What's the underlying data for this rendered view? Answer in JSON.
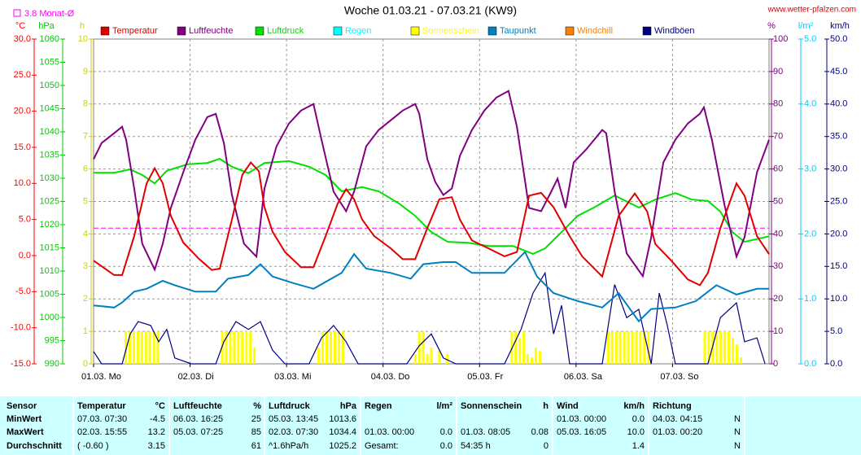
{
  "chart_data": {
    "type": "line",
    "title": "Woche 01.03.21 - 07.03.21 (KW9)",
    "source": "www.wetter-pfalzen.com",
    "monthly_avg": {
      "label": "3.8 Monat-Ø",
      "value": 3.8,
      "color": "#ff00ff",
      "axis": 0
    },
    "grid": true,
    "xlim": [
      0,
      168
    ],
    "xticks": [
      {
        "value": 0,
        "label": "01.03. Mo"
      },
      {
        "value": 24,
        "label": "02.03. Di"
      },
      {
        "value": 48,
        "label": "03.03. Mi"
      },
      {
        "value": 72,
        "label": "04.03. Do"
      },
      {
        "value": 96,
        "label": "05.03. Fr"
      },
      {
        "value": 120,
        "label": "06.03. Sa"
      },
      {
        "value": 144,
        "label": "07.03. So"
      }
    ],
    "axes": [
      {
        "label": "°C",
        "color": "#ff0000",
        "lim": [
          -15,
          30
        ],
        "ticks": [
          {
            "value": 30,
            "label": "30.0"
          },
          {
            "value": 25,
            "label": "25.0"
          },
          {
            "value": 20,
            "label": "20.0"
          },
          {
            "value": 15,
            "label": "15.0"
          },
          {
            "value": 10,
            "label": "10.0"
          },
          {
            "value": 5,
            "label": "5.0"
          },
          {
            "value": 0,
            "label": "0.0"
          },
          {
            "value": -5,
            "label": "-5.0"
          },
          {
            "value": -10,
            "label": "-10.0"
          },
          {
            "value": -15,
            "label": "-15.0"
          }
        ]
      },
      {
        "label": "hPa",
        "color": "#00cc00",
        "lim": [
          990,
          1060
        ],
        "ticks": [
          1060,
          1055,
          1050,
          1045,
          1040,
          1035,
          1030,
          1025,
          1020,
          1015,
          1010,
          1005,
          1000,
          995,
          990
        ]
      },
      {
        "label": "h",
        "color": "#d0d000",
        "lim": [
          0,
          10
        ],
        "ticks": [
          10,
          9,
          8,
          7,
          6,
          5,
          4,
          3,
          2,
          1,
          0
        ]
      },
      {
        "label": "%",
        "color": "#800080",
        "lim": [
          0,
          100
        ],
        "ticks": [
          100,
          90,
          80,
          70,
          60,
          50,
          40,
          30,
          20,
          10,
          0
        ]
      },
      {
        "label": "l/m²",
        "color": "#00ccff",
        "lim": [
          0,
          5
        ],
        "ticks": [
          {
            "value": 5,
            "label": "5.0"
          },
          {
            "value": 4,
            "label": "4.0"
          },
          {
            "value": 3,
            "label": "3.0"
          },
          {
            "value": 2,
            "label": "2.0"
          },
          {
            "value": 1,
            "label": "1.0"
          },
          {
            "value": 0,
            "label": "0.0"
          }
        ]
      },
      {
        "label": "km/h",
        "color": "#000080",
        "lim": [
          0,
          50
        ],
        "ticks": [
          {
            "value": 50,
            "label": "50.0"
          },
          {
            "value": 45,
            "label": "45.0"
          },
          {
            "value": 40,
            "label": "40.0"
          },
          {
            "value": 35,
            "label": "35.0"
          },
          {
            "value": 30,
            "label": "30.0"
          },
          {
            "value": 25,
            "label": "25.0"
          },
          {
            "value": 20,
            "label": "20.0"
          },
          {
            "value": 15,
            "label": "15.0"
          },
          {
            "value": 10,
            "label": "10.0"
          },
          {
            "value": 5,
            "label": "5.0"
          },
          {
            "value": 0,
            "label": "0.0"
          }
        ]
      }
    ],
    "series": [
      {
        "name": "Temperatur",
        "color": "#e00000",
        "axis": 0,
        "kind": "line",
        "x": [
          0,
          5.1,
          7.1,
          10.1,
          13.2,
          15.2,
          17.2,
          19.2,
          22.3,
          26.3,
          29.4,
          31.4,
          34.4,
          37.0,
          39.1,
          41.1,
          42.5,
          44.5,
          47.6,
          51.6,
          54.7,
          57.7,
          60.7,
          62.8,
          64.8,
          66.8,
          69.8,
          73.9,
          76.9,
          80.0,
          83.0,
          86.0,
          89.1,
          91.1,
          94.1,
          98.2,
          102.2,
          105.3,
          108.3,
          111.3,
          114.4,
          118.4,
          121.5,
          126.5,
          130.6,
          134.6,
          137.7,
          139.7,
          143.7,
          147.8,
          150.8,
          152.8,
          155.9,
          159.9,
          161.9,
          165.0,
          168.0
        ],
        "values": [
          -0.7,
          -2.7,
          -2.7,
          2.7,
          10.0,
          12.1,
          10.0,
          5.5,
          1.8,
          -0.5,
          -2.0,
          -1.8,
          5.0,
          11.2,
          12.9,
          11.7,
          6.7,
          3.3,
          0.5,
          -1.6,
          -1.6,
          2.7,
          7.2,
          9.2,
          7.8,
          5.0,
          2.7,
          1.0,
          -0.5,
          -0.5,
          3.8,
          7.8,
          8.1,
          5.0,
          2.1,
          1.0,
          -0.1,
          0.5,
          8.3,
          8.7,
          6.7,
          2.7,
          -0.1,
          -2.9,
          5.5,
          8.6,
          6.1,
          1.6,
          -0.7,
          -3.3,
          -4.1,
          -2.4,
          3.8,
          10.0,
          8.3,
          2.7,
          0.2
        ]
      },
      {
        "name": "Luftfeuchte",
        "color": "#800080",
        "axis": 3,
        "kind": "line",
        "x": [
          0,
          2.0,
          5.1,
          7.1,
          8.1,
          10.1,
          12.1,
          15.2,
          17.2,
          19.2,
          22.3,
          25.3,
          28.3,
          30.4,
          32.4,
          34.4,
          37.4,
          40.5,
          42.5,
          45.5,
          48.6,
          51.6,
          54.7,
          56.7,
          59.7,
          62.8,
          64.8,
          67.8,
          70.9,
          73.9,
          76.9,
          80.0,
          81.0,
          83.0,
          85.0,
          87.0,
          89.1,
          91.1,
          94.1,
          97.2,
          100.2,
          103.2,
          105.3,
          108.3,
          111.3,
          113.4,
          115.4,
          117.4,
          119.4,
          122.5,
          126.5,
          127.5,
          129.6,
          132.6,
          136.6,
          138.7,
          141.7,
          144.7,
          147.8,
          150.8,
          151.8,
          153.8,
          156.9,
          159.9,
          161.9,
          165.0,
          168.0
        ],
        "values": [
          63,
          68,
          71,
          73,
          69,
          54,
          37,
          29,
          37,
          48,
          59,
          69,
          76,
          77,
          68,
          52,
          37,
          33,
          54,
          67,
          74,
          78,
          80,
          69,
          53,
          47,
          53,
          67,
          72,
          75,
          78,
          80,
          77,
          63,
          56,
          52,
          54,
          64,
          72,
          78,
          82,
          84,
          73,
          48,
          47,
          52,
          57,
          48,
          62,
          66,
          72,
          71,
          53,
          34,
          27,
          39,
          62,
          69,
          74,
          77,
          79,
          69,
          49,
          33,
          39,
          59,
          69
        ]
      },
      {
        "name": "Luftdruck",
        "color": "#00e000",
        "axis": 1,
        "kind": "line",
        "x": [
          0,
          5.1,
          9.1,
          12.1,
          15.2,
          18.2,
          23.3,
          28.3,
          31.4,
          34.4,
          38.5,
          42.5,
          48.6,
          53.6,
          57.7,
          61.7,
          66.8,
          70.9,
          75.9,
          80.0,
          84.0,
          88.1,
          93.1,
          98.2,
          104.3,
          109.3,
          112.3,
          116.4,
          120.4,
          124.5,
          129.6,
          135.6,
          139.7,
          144.7,
          148.8,
          152.8,
          155.9,
          158.9,
          161.9,
          168.0
        ],
        "values": [
          1031.2,
          1031.2,
          1031.9,
          1030.7,
          1028.9,
          1031.6,
          1033.0,
          1033.3,
          1034.2,
          1032.5,
          1031.1,
          1033.3,
          1033.7,
          1032.5,
          1030.7,
          1027.2,
          1028.1,
          1027.2,
          1024.6,
          1021.9,
          1018.4,
          1016.3,
          1016.1,
          1015.4,
          1015.4,
          1013.7,
          1014.9,
          1018.4,
          1021.9,
          1023.7,
          1026.3,
          1023.7,
          1025.4,
          1026.8,
          1025.4,
          1025.1,
          1022.8,
          1018.4,
          1016.3,
          1017.5
        ]
      },
      {
        "name": "Regen",
        "color": "#00ffff",
        "axis": 4,
        "kind": "line",
        "x": [],
        "values": []
      },
      {
        "name": "Sonnenschein",
        "color": "#ffff00",
        "axis": 2,
        "kind": "bar",
        "x": [
          8,
          9,
          10,
          11,
          12,
          13,
          14,
          15,
          16,
          32,
          33,
          34,
          35,
          36,
          37,
          38,
          39,
          40,
          56,
          57,
          58,
          59,
          60,
          61,
          62,
          80,
          81,
          82,
          83,
          84,
          86,
          88,
          104,
          105,
          106,
          107,
          108,
          109,
          110,
          111,
          128,
          129,
          130,
          131,
          132,
          133,
          134,
          135,
          136,
          137,
          138,
          152,
          153,
          154,
          155,
          156,
          157,
          158,
          159,
          160,
          161
        ],
        "values": [
          1,
          1,
          1,
          1,
          1,
          1,
          1,
          1,
          1,
          1,
          1,
          1,
          1,
          1,
          1,
          1,
          1,
          0.5,
          0.5,
          1,
          1,
          1,
          1,
          1,
          1,
          0.3,
          1,
          1,
          0.3,
          0.5,
          0.4,
          0.3,
          1,
          1,
          0.8,
          1,
          0.3,
          0.2,
          0.5,
          0.4,
          1,
          1,
          1,
          1,
          1,
          1,
          1,
          1,
          1,
          1,
          1,
          1,
          1,
          1,
          1,
          1,
          1,
          1,
          0.8,
          0.6,
          0.2
        ]
      },
      {
        "name": "Taupunkt",
        "color": "#0080c0",
        "axis": 0,
        "kind": "line",
        "x": [
          0,
          5.1,
          7.1,
          10.1,
          13.2,
          17.2,
          20.2,
          25.3,
          30.4,
          33.4,
          38.5,
          41.5,
          44.5,
          49.6,
          54.7,
          61.7,
          64.8,
          67.8,
          73.9,
          78.9,
          82.0,
          87.0,
          90.1,
          94.1,
          102.2,
          107.3,
          110.3,
          114.4,
          120.4,
          126.5,
          130.6,
          135.6,
          138.7,
          144.7,
          149.8,
          154.9,
          159.9,
          165.0,
          168.0
        ],
        "values": [
          -6.9,
          -7.2,
          -6.5,
          -5.0,
          -4.6,
          -3.5,
          -4.1,
          -5.0,
          -5.0,
          -3.2,
          -2.7,
          -1.2,
          -2.9,
          -3.8,
          -4.6,
          -2.4,
          0.2,
          -1.8,
          -2.4,
          -3.2,
          -1.2,
          -0.9,
          -0.9,
          -2.4,
          -2.4,
          0.5,
          -2.9,
          -5.2,
          -6.3,
          -7.2,
          -5.2,
          -9.1,
          -7.4,
          -7.2,
          -6.3,
          -4.1,
          -5.4,
          -4.6,
          -4.6
        ]
      },
      {
        "name": "Windchill",
        "color": "#ff8000",
        "axis": 0,
        "kind": "line",
        "x": [],
        "values": []
      },
      {
        "name": "Windböen",
        "color": "#000080",
        "axis": 5,
        "kind": "line",
        "x": [
          0,
          2.0,
          7.1,
          9.1,
          11.1,
          14.2,
          16.2,
          18.2,
          20.2,
          24.3,
          30.4,
          32.4,
          35.4,
          38.5,
          41.5,
          44.5,
          47.6,
          53.6,
          56.7,
          59.7,
          62.8,
          65.8,
          77.9,
          81.0,
          84.0,
          87.0,
          90.1,
          102.2,
          106.3,
          109.3,
          112.3,
          114.4,
          116.4,
          118.4,
          126.5,
          129.6,
          132.6,
          135.6,
          138.7,
          140.7,
          142.7,
          144.7,
          152.8,
          155.9,
          159.9,
          161.9,
          165.0,
          167.0
        ],
        "values": [
          1.9,
          0,
          0,
          4.6,
          6.5,
          5.9,
          3.4,
          5.3,
          0.9,
          0,
          0,
          3.4,
          6.5,
          5.3,
          6.5,
          2.1,
          0,
          0,
          4.0,
          5.9,
          3.4,
          0,
          0,
          2.8,
          4.6,
          0.9,
          0,
          0,
          5.3,
          10.9,
          14.0,
          4.6,
          9.0,
          0,
          0,
          12.2,
          7.1,
          8.4,
          0,
          10.9,
          5.9,
          0,
          0,
          7.1,
          9.4,
          3.4,
          4.0,
          0
        ]
      }
    ]
  },
  "table": {
    "sensor": "Sensor",
    "groups": [
      {
        "name": "Temperatur",
        "unit": "°C"
      },
      {
        "name": "Luftfeuchte",
        "unit": "%"
      },
      {
        "name": "Luftdruck",
        "unit": "hPa"
      },
      {
        "name": "Regen",
        "unit": "l/m²"
      },
      {
        "name": "Sonnenschein",
        "unit": "h"
      },
      {
        "name": "Wind",
        "unit": "km/h"
      },
      {
        "name": "Richtung"
      }
    ],
    "rows": [
      {
        "label": "MinWert",
        "cells": [
          [
            "07.03. 07:30",
            "-4.5"
          ],
          [
            "06.03. 16:25",
            "25"
          ],
          [
            "05.03. 13:45",
            "1013.6"
          ],
          null,
          null,
          [
            "01.03. 00:00",
            "0.0"
          ],
          [
            "04.03. 04:15",
            "N"
          ]
        ]
      },
      {
        "label": "MaxWert",
        "cells": [
          [
            "02.03. 15:55",
            "13.2"
          ],
          [
            "05.03. 07:25",
            "85"
          ],
          [
            "02.03. 07:30",
            "1034.4"
          ],
          [
            "01.03. 00:00",
            "0.0"
          ],
          [
            "01.03. 08:05",
            "0.08"
          ],
          [
            "05.03. 16:05",
            "10.0"
          ],
          [
            "01.03. 00:20",
            "N"
          ]
        ]
      },
      {
        "label": "Durchschnitt",
        "cells": [
          [
            "( -0.60 )",
            "3.15"
          ],
          [
            null,
            "61"
          ],
          [
            "^1.6hPa/h",
            "1025.2"
          ],
          [
            "Gesamt:",
            "0.0"
          ],
          [
            "54:35 h",
            "0"
          ],
          [
            null,
            "1.4"
          ],
          [
            null,
            "N"
          ]
        ]
      }
    ]
  }
}
